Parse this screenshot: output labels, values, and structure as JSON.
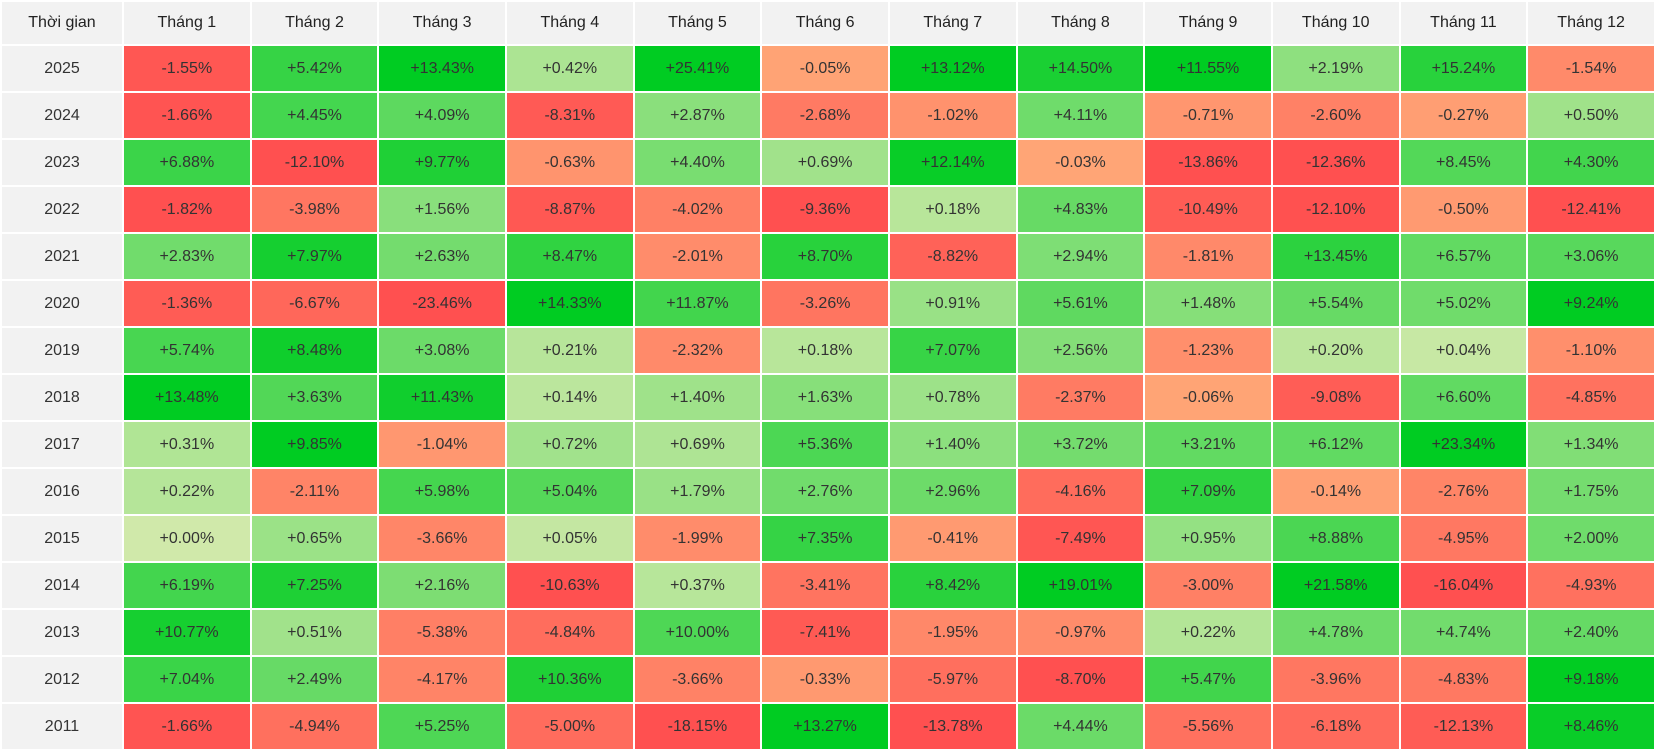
{
  "table": {
    "header": [
      "Thời gian",
      "Tháng 1",
      "Tháng 2",
      "Tháng 3",
      "Tháng 4",
      "Tháng 5",
      "Tháng 6",
      "Tháng 7",
      "Tháng 8",
      "Tháng 9",
      "Tháng 10",
      "Tháng 11",
      "Tháng 12"
    ],
    "rows": [
      [
        "2025",
        "-1.55%",
        "+5.42%",
        "+13.43%",
        "+0.42%",
        "+25.41%",
        "-0.05%",
        "+13.12%",
        "+14.50%",
        "+11.55%",
        "+2.19%",
        "+15.24%",
        "-1.54%"
      ],
      [
        "2024",
        "-1.66%",
        "+4.45%",
        "+4.09%",
        "-8.31%",
        "+2.87%",
        "-2.68%",
        "-1.02%",
        "+4.11%",
        "-0.71%",
        "-2.60%",
        "-0.27%",
        "+0.50%"
      ],
      [
        "2023",
        "+6.88%",
        "-12.10%",
        "+9.77%",
        "-0.63%",
        "+4.40%",
        "+0.69%",
        "+12.14%",
        "-0.03%",
        "-13.86%",
        "-12.36%",
        "+8.45%",
        "+4.30%"
      ],
      [
        "2022",
        "-1.82%",
        "-3.98%",
        "+1.56%",
        "-8.87%",
        "-4.02%",
        "-9.36%",
        "+0.18%",
        "+4.83%",
        "-10.49%",
        "-12.10%",
        "-0.50%",
        "-12.41%"
      ],
      [
        "2021",
        "+2.83%",
        "+7.97%",
        "+2.63%",
        "+8.47%",
        "-2.01%",
        "+8.70%",
        "-8.82%",
        "+2.94%",
        "-1.81%",
        "+13.45%",
        "+6.57%",
        "+3.06%"
      ],
      [
        "2020",
        "-1.36%",
        "-6.67%",
        "-23.46%",
        "+14.33%",
        "+11.87%",
        "-3.26%",
        "+0.91%",
        "+5.61%",
        "+1.48%",
        "+5.54%",
        "+5.02%",
        "+9.24%"
      ],
      [
        "2019",
        "+5.74%",
        "+8.48%",
        "+3.08%",
        "+0.21%",
        "-2.32%",
        "+0.18%",
        "+7.07%",
        "+2.56%",
        "-1.23%",
        "+0.20%",
        "+0.04%",
        "-1.10%"
      ],
      [
        "2018",
        "+13.48%",
        "+3.63%",
        "+11.43%",
        "+0.14%",
        "+1.40%",
        "+1.63%",
        "+0.78%",
        "-2.37%",
        "-0.06%",
        "-9.08%",
        "+6.60%",
        "-4.85%"
      ],
      [
        "2017",
        "+0.31%",
        "+9.85%",
        "-1.04%",
        "+0.72%",
        "+0.69%",
        "+5.36%",
        "+1.40%",
        "+3.72%",
        "+3.21%",
        "+6.12%",
        "+23.34%",
        "+1.34%"
      ],
      [
        "2016",
        "+0.22%",
        "-2.11%",
        "+5.98%",
        "+5.04%",
        "+1.79%",
        "+2.76%",
        "+2.96%",
        "-4.16%",
        "+7.09%",
        "-0.14%",
        "-2.76%",
        "+1.75%"
      ],
      [
        "2015",
        "+0.00%",
        "+0.65%",
        "-3.66%",
        "+0.05%",
        "-1.99%",
        "+7.35%",
        "-0.41%",
        "-7.49%",
        "+0.95%",
        "+8.88%",
        "-4.95%",
        "+2.00%"
      ],
      [
        "2014",
        "+6.19%",
        "+7.25%",
        "+2.16%",
        "-10.63%",
        "+0.37%",
        "-3.41%",
        "+8.42%",
        "+19.01%",
        "-3.00%",
        "+21.58%",
        "-16.04%",
        "-4.93%"
      ],
      [
        "2013",
        "+10.77%",
        "+0.51%",
        "-5.38%",
        "-4.84%",
        "+10.00%",
        "-7.41%",
        "-1.95%",
        "-0.97%",
        "+0.22%",
        "+4.78%",
        "+4.74%",
        "+2.40%"
      ],
      [
        "2012",
        "+7.04%",
        "+2.49%",
        "-4.17%",
        "+10.36%",
        "-3.66%",
        "-0.33%",
        "-5.97%",
        "-8.70%",
        "+5.47%",
        "-3.96%",
        "-4.83%",
        "+9.18%"
      ],
      [
        "2011",
        "-1.66%",
        "-4.94%",
        "+5.25%",
        "-5.00%",
        "-18.15%",
        "+13.27%",
        "-13.78%",
        "+4.44%",
        "-5.56%",
        "-6.18%",
        "-12.13%",
        "+8.46%"
      ]
    ]
  }
}
